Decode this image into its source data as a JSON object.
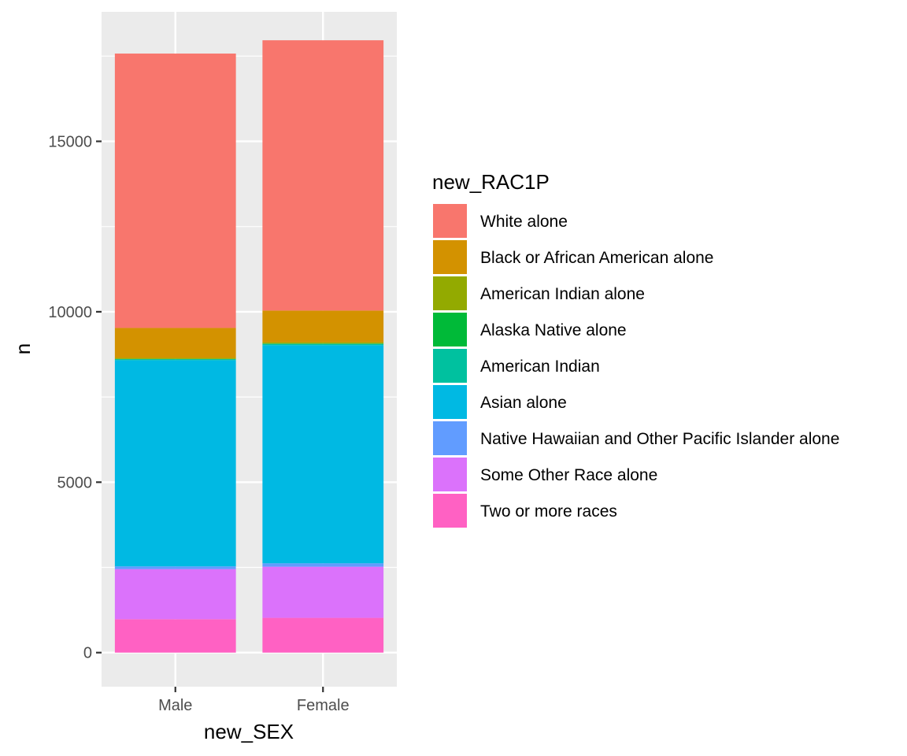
{
  "chart_data": {
    "type": "bar",
    "stacked": true,
    "xlabel": "new_SEX",
    "ylabel": "n",
    "categories": [
      "Male",
      "Female"
    ],
    "ylim": [
      -1000,
      18800
    ],
    "yticks": [
      0,
      5000,
      10000,
      15000
    ],
    "legend_title": "new_RAC1P",
    "legend_position": "right",
    "grid": true,
    "panel_background": "#ebebeb",
    "series": [
      {
        "name": "White alone",
        "color": "#F8766D",
        "values": [
          8050,
          7930
        ]
      },
      {
        "name": "Black or African American alone",
        "color": "#D39200",
        "values": [
          880,
          930
        ]
      },
      {
        "name": "American Indian alone",
        "color": "#93AA00",
        "values": [
          30,
          40
        ]
      },
      {
        "name": "Alaska Native alone",
        "color": "#00BA38",
        "values": [
          5,
          5
        ]
      },
      {
        "name": "American Indian",
        "color": "#00C19F",
        "values": [
          30,
          40
        ]
      },
      {
        "name": "Asian alone",
        "color": "#00B9E3",
        "values": [
          6050,
          6400
        ]
      },
      {
        "name": "Native Hawaiian and Other Pacific Islander alone",
        "color": "#619CFF",
        "values": [
          80,
          100
        ]
      },
      {
        "name": "Some Other Race alone",
        "color": "#DB72FB",
        "values": [
          1470,
          1500
        ]
      },
      {
        "name": "Two or more races",
        "color": "#FF61C3",
        "values": [
          980,
          1020
        ]
      }
    ]
  }
}
